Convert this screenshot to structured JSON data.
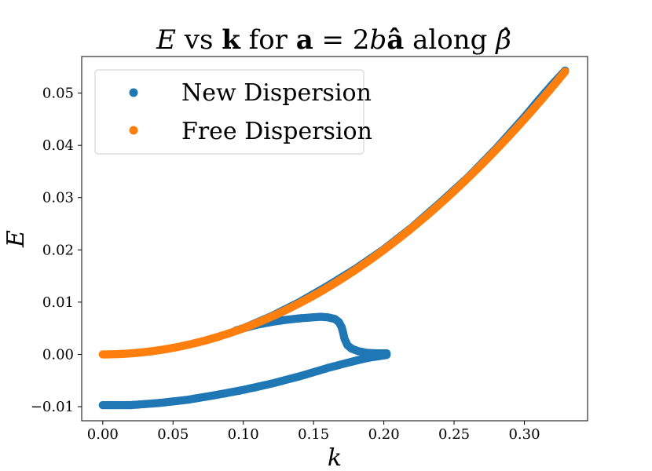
{
  "chart_data": {
    "type": "scatter",
    "title": {
      "lhs": "E",
      "vs": " vs ",
      "k": "k",
      "for": " for ",
      "a": "a",
      "eq": " = 2",
      "b": "b",
      "ahat": "â",
      "along": " along ",
      "beta": "β̂"
    },
    "xlabel": "k",
    "ylabel": "E",
    "xlim": [
      -0.015,
      0.345
    ],
    "ylim": [
      -0.0127,
      0.057
    ],
    "xticks": [
      0.0,
      0.05,
      0.1,
      0.15,
      0.2,
      0.25,
      0.3
    ],
    "xtick_labels": [
      "0.00",
      "0.05",
      "0.10",
      "0.15",
      "0.20",
      "0.25",
      "0.30"
    ],
    "yticks": [
      -0.01,
      0.0,
      0.01,
      0.02,
      0.03,
      0.04,
      0.05
    ],
    "ytick_labels": [
      "−0.01",
      "0.00",
      "0.01",
      "0.02",
      "0.03",
      "0.04",
      "0.05"
    ],
    "legend_position": "top-left",
    "grid": false,
    "series": [
      {
        "name": "New Dispersion",
        "color": "#1f77b4",
        "segments": [
          [
            [
              0.095,
              0.0046
            ],
            [
              0.1,
              0.005
            ],
            [
              0.11,
              0.0057
            ],
            [
              0.12,
              0.0062
            ],
            [
              0.13,
              0.0066
            ],
            [
              0.14,
              0.0069
            ],
            [
              0.15,
              0.0071
            ],
            [
              0.155,
              0.0072
            ],
            [
              0.16,
              0.0071
            ],
            [
              0.165,
              0.0068
            ],
            [
              0.168,
              0.0062
            ],
            [
              0.17,
              0.0052
            ],
            [
              0.171,
              0.0042
            ],
            [
              0.172,
              0.003
            ],
            [
              0.174,
              0.0018
            ],
            [
              0.177,
              0.0011
            ],
            [
              0.182,
              0.0006
            ],
            [
              0.188,
              0.0003
            ],
            [
              0.195,
              0.0002
            ],
            [
              0.202,
              0.0002
            ]
          ],
          [
            [
              0.0,
              -0.0097
            ],
            [
              0.02,
              -0.0097
            ],
            [
              0.04,
              -0.0093
            ],
            [
              0.06,
              -0.0087
            ],
            [
              0.08,
              -0.0078
            ],
            [
              0.1,
              -0.0068
            ],
            [
              0.12,
              -0.0056
            ],
            [
              0.14,
              -0.0042
            ],
            [
              0.16,
              -0.0026
            ],
            [
              0.18,
              -0.0012
            ],
            [
              0.19,
              -0.0006
            ],
            [
              0.2,
              -0.0002
            ],
            [
              0.202,
              -0.0001
            ]
          ],
          [
            [
              0.1,
              0.005
            ],
            [
              0.12,
              0.0073
            ],
            [
              0.14,
              0.01
            ],
            [
              0.16,
              0.0131
            ],
            [
              0.18,
              0.0164
            ],
            [
              0.2,
              0.0201
            ],
            [
              0.22,
              0.0243
            ],
            [
              0.24,
              0.029
            ],
            [
              0.26,
              0.0339
            ],
            [
              0.28,
              0.0394
            ],
            [
              0.3,
              0.0454
            ],
            [
              0.31,
              0.0486
            ],
            [
              0.32,
              0.0517
            ],
            [
              0.329,
              0.0543
            ]
          ]
        ]
      },
      {
        "name": "Free Dispersion",
        "color": "#ff7f0e",
        "coefficient": 0.5,
        "x_range": [
          0.0,
          0.329
        ]
      }
    ]
  }
}
